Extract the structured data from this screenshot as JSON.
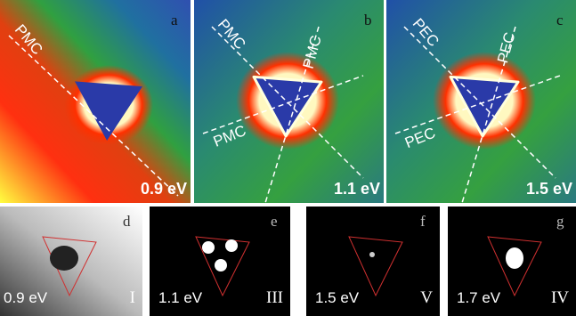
{
  "top_panels": [
    {
      "letter": "a",
      "energy": "0.9 eV",
      "lines": [
        "PMC"
      ]
    },
    {
      "letter": "b",
      "energy": "1.1 eV",
      "lines": [
        "PMC",
        "PMC",
        "PMC"
      ]
    },
    {
      "letter": "c",
      "energy": "1.5 eV",
      "lines": [
        "PEC",
        "PEC",
        "PEC"
      ]
    }
  ],
  "bottom_panels": [
    {
      "letter": "d",
      "energy": "0.9 eV",
      "mode": "I"
    },
    {
      "letter": "e",
      "energy": "1.1 eV",
      "mode": "III"
    },
    {
      "letter": "f",
      "energy": "1.5 eV",
      "mode": "V"
    },
    {
      "letter": "g",
      "energy": "1.7 eV",
      "mode": "IV"
    }
  ]
}
